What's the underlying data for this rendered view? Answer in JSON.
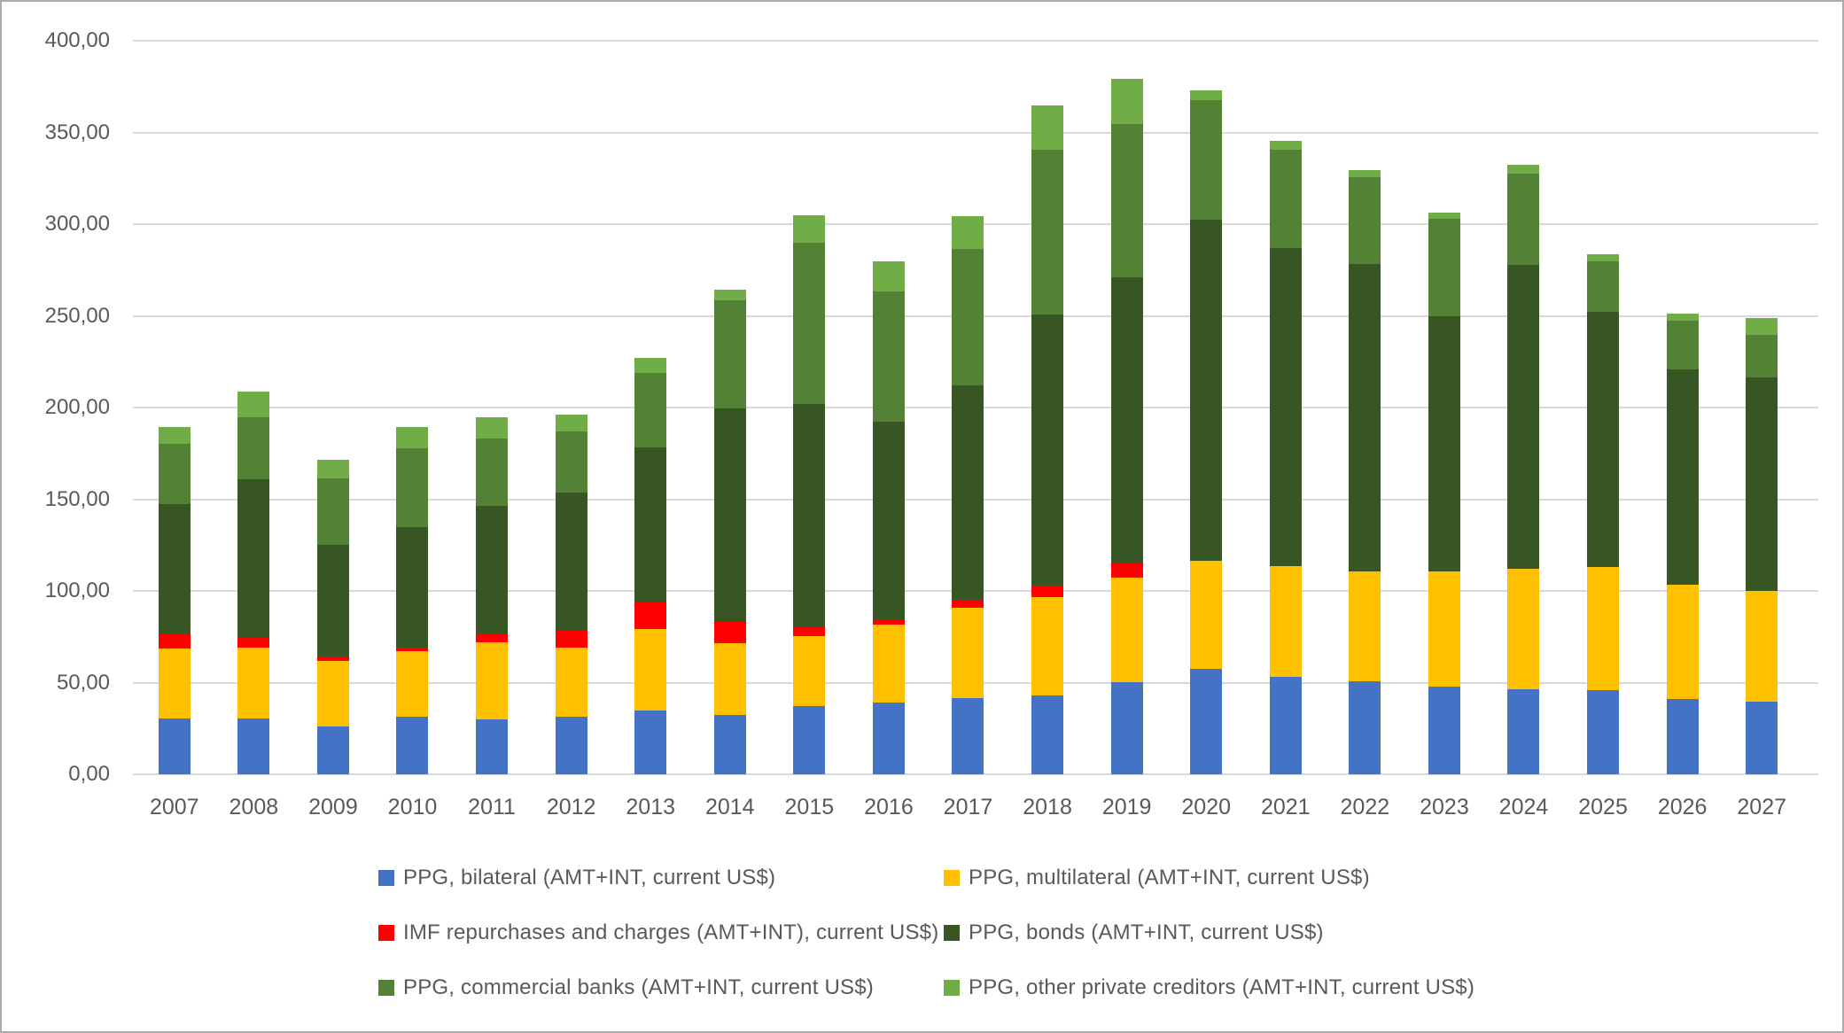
{
  "chart_data": {
    "type": "bar",
    "stacked": true,
    "title": "",
    "xlabel": "",
    "ylabel": "",
    "categories": [
      "2007",
      "2008",
      "2009",
      "2010",
      "2011",
      "2012",
      "2013",
      "2014",
      "2015",
      "2016",
      "2017",
      "2018",
      "2019",
      "2020",
      "2021",
      "2022",
      "2023",
      "2024",
      "2025",
      "2026",
      "2027"
    ],
    "series": [
      {
        "name": "PPG, bilateral (AMT+INT, current US$)",
        "color": "#4472C4",
        "values": [
          30.6,
          30.3,
          26.3,
          31.6,
          30.0,
          31.6,
          34.7,
          32.3,
          37.3,
          39.2,
          41.6,
          43.2,
          50.3,
          57.7,
          53.2,
          50.5,
          47.7,
          46.5,
          45.8,
          41.3,
          39.4
        ]
      },
      {
        "name": "PPG, multilateral (AMT+INT, current US$)",
        "color": "#FFC000",
        "values": [
          37.9,
          38.7,
          35.5,
          35.4,
          41.8,
          37.4,
          44.3,
          39.0,
          38.0,
          42.4,
          49.2,
          53.6,
          57.0,
          58.5,
          60.3,
          60.1,
          62.8,
          65.8,
          67.3,
          62.0,
          60.6
        ]
      },
      {
        "name": "IMF repurchases and charges (AMT+INT), current US$)",
        "color": "#FF0000",
        "values": [
          8.5,
          5.5,
          2.4,
          2.0,
          4.5,
          9.5,
          15.4,
          11.8,
          5.3,
          2.4,
          4.4,
          6.1,
          7.8,
          0,
          0,
          0,
          0,
          0,
          0,
          0,
          0
        ]
      },
      {
        "name": "PPG, bonds (AMT+INT, current US$)",
        "color": "#375623",
        "values": [
          70.5,
          86.5,
          60.8,
          66.0,
          69.9,
          75.3,
          83.8,
          116.4,
          121.2,
          108.3,
          116.9,
          147.6,
          155.9,
          186.4,
          173.7,
          167.6,
          139.5,
          165.6,
          138.9,
          117.7,
          116.4
        ]
      },
      {
        "name": "PPG, commercial banks (AMT+INT, current US$)",
        "color": "#538135",
        "values": [
          32.5,
          33.5,
          36.5,
          42.7,
          37.1,
          33.4,
          40.8,
          59.0,
          88.0,
          71.1,
          74.5,
          90.0,
          83.8,
          65.2,
          53.2,
          47.3,
          52.7,
          49.5,
          27.6,
          26.5,
          23.3
        ]
      },
      {
        "name": "PPG, other private creditors (AMT+INT, current US$)",
        "color": "#70AD47",
        "values": [
          9.5,
          14.0,
          9.8,
          11.5,
          11.6,
          9.2,
          8.1,
          5.7,
          15.0,
          16.1,
          17.9,
          24.1,
          24.6,
          5.2,
          5.2,
          4.0,
          3.8,
          4.9,
          4.1,
          3.6,
          9.0
        ]
      }
    ],
    "ylim": [
      0,
      400
    ],
    "ytick_step": 50,
    "ytick_labels_top_down": [
      "400,00",
      "350,00",
      "300,00",
      "250,00",
      "200,00",
      "150,00",
      "100,00",
      "50,00",
      "0,00"
    ],
    "grid": true,
    "gridline_color": "#D9D9D9",
    "number_format": "comma-decimal",
    "legend_position": "bottom",
    "legend_layout": "3 rows x 2 columns"
  }
}
